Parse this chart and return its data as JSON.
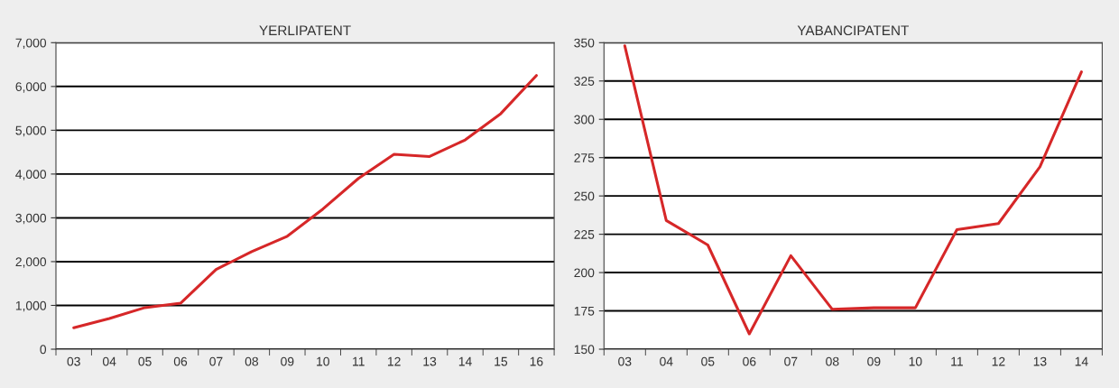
{
  "chart_data": [
    {
      "type": "line",
      "title": "YERLIPATENT",
      "categories": [
        "03",
        "04",
        "05",
        "06",
        "07",
        "08",
        "09",
        "10",
        "11",
        "12",
        "13",
        "14",
        "15",
        "16"
      ],
      "series": [
        {
          "color": "#d62728",
          "values": [
            490,
            700,
            950,
            1050,
            1820,
            2230,
            2580,
            3200,
            3900,
            4450,
            4400,
            4780,
            5380,
            6250
          ]
        }
      ],
      "ylim": [
        0,
        7000
      ],
      "yticks": [
        {
          "value": 0,
          "label": "0"
        },
        {
          "value": 1000,
          "label": "1,000"
        },
        {
          "value": 2000,
          "label": "2,000"
        },
        {
          "value": 3000,
          "label": "3,000"
        },
        {
          "value": 4000,
          "label": "4,000"
        },
        {
          "value": 5000,
          "label": "5,000"
        },
        {
          "value": 6000,
          "label": "6,000"
        },
        {
          "value": 7000,
          "label": "7,000"
        }
      ],
      "grid": "y"
    },
    {
      "type": "line",
      "title": "YABANCIPATENT",
      "categories": [
        "03",
        "04",
        "05",
        "06",
        "07",
        "08",
        "09",
        "10",
        "11",
        "12",
        "13",
        "14"
      ],
      "series": [
        {
          "color": "#d62728",
          "values": [
            348,
            234,
            218,
            160,
            211,
            176,
            177,
            177,
            228,
            232,
            269,
            331
          ]
        }
      ],
      "ylim": [
        150,
        350
      ],
      "yticks": [
        150,
        175,
        200,
        225,
        250,
        275,
        300,
        325,
        350
      ],
      "grid": "y"
    }
  ]
}
